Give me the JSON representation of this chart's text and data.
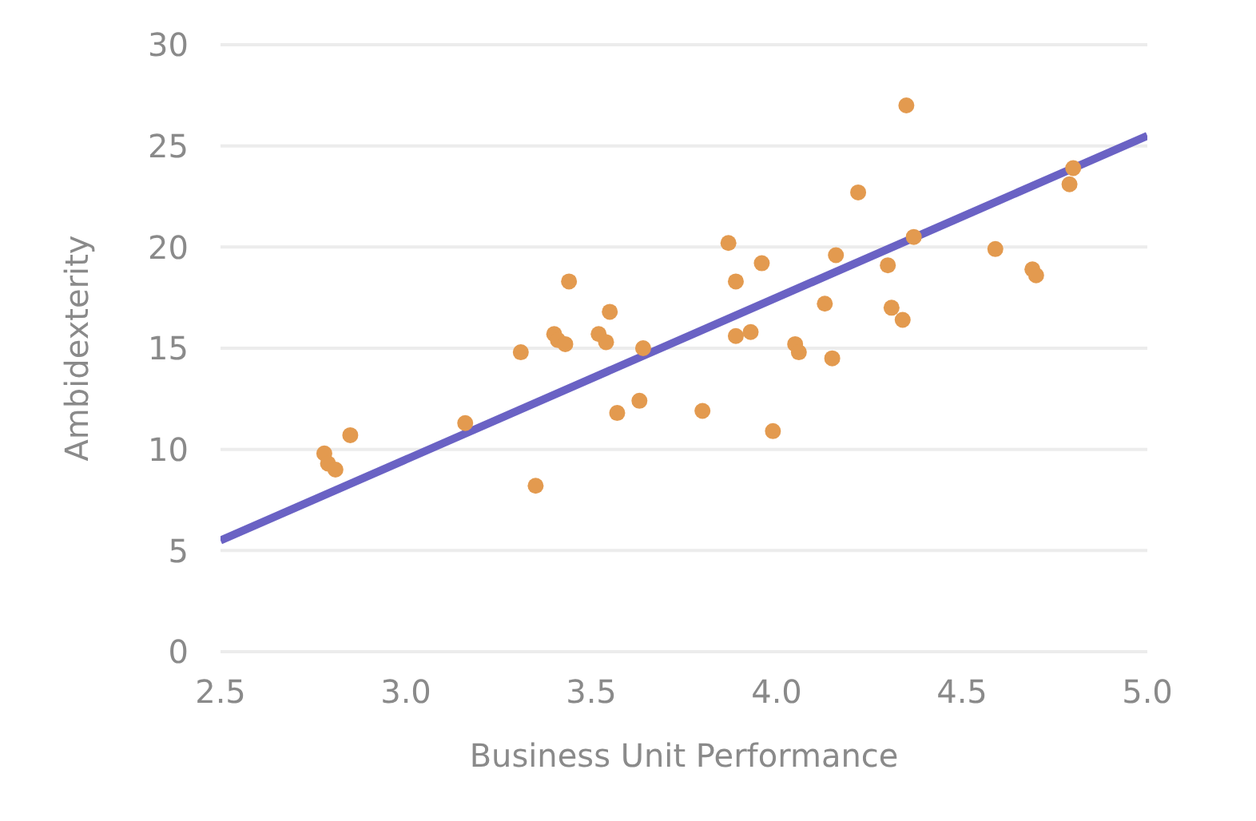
{
  "chart_data": {
    "type": "scatter",
    "xlabel": "Business Unit Performance",
    "ylabel": "Ambidexterity",
    "xlim": [
      2.5,
      5.0
    ],
    "xticks": [
      {
        "value": 2.5,
        "label": "2.5"
      },
      {
        "value": 3.0,
        "label": "3.0"
      },
      {
        "value": 3.5,
        "label": "3.5"
      },
      {
        "value": 4.0,
        "label": "4.0"
      },
      {
        "value": 4.5,
        "label": "4.5"
      },
      {
        "value": 5.0,
        "label": "5.0"
      }
    ],
    "ylim": [
      0,
      30
    ],
    "yticks": [
      0,
      5,
      10,
      15,
      20,
      25,
      30
    ],
    "grid": "y",
    "series": [
      {
        "marker": "circle",
        "color": "#e39a4f",
        "x": [
          2.78,
          2.79,
          2.81,
          2.85,
          3.16,
          3.31,
          3.35,
          3.4,
          3.41,
          3.43,
          3.44,
          3.52,
          3.54,
          3.55,
          3.57,
          3.63,
          3.64,
          3.8,
          3.87,
          3.89,
          3.89,
          3.93,
          3.96,
          3.99,
          4.05,
          4.06,
          4.13,
          4.15,
          4.16,
          4.22,
          4.3,
          4.31,
          4.34,
          4.35,
          4.37,
          4.59,
          4.69,
          4.7,
          4.79,
          4.8
        ],
        "values": [
          9.8,
          9.3,
          9.0,
          10.7,
          11.3,
          14.8,
          8.2,
          15.7,
          15.4,
          15.2,
          18.3,
          15.7,
          15.3,
          16.8,
          11.8,
          12.4,
          15.0,
          11.9,
          20.2,
          18.3,
          15.6,
          15.8,
          19.2,
          10.9,
          15.2,
          14.8,
          17.2,
          14.5,
          19.6,
          22.7,
          19.1,
          17.0,
          16.4,
          27.0,
          20.5,
          19.9,
          18.9,
          18.6,
          23.1,
          23.9
        ]
      },
      {
        "type": "line",
        "color": "#6a62c4",
        "x": [
          2.5,
          5.0
        ],
        "values": [
          5.5,
          25.5
        ]
      }
    ]
  }
}
